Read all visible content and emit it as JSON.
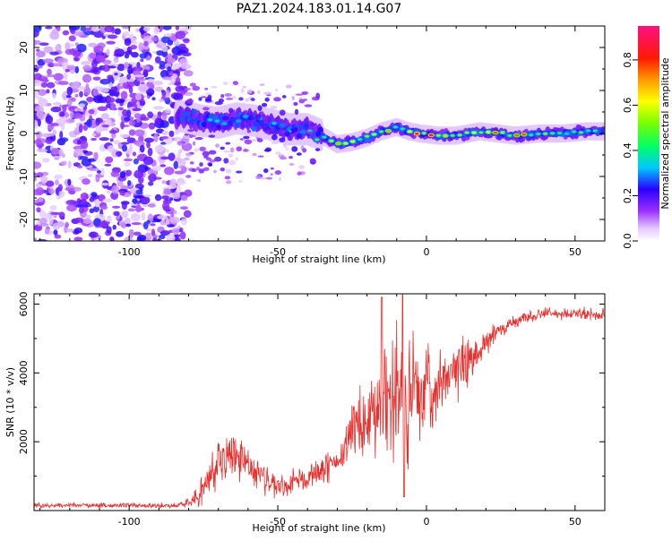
{
  "title": "PAZ1.2024.183.01.14.G07",
  "chart_data": [
    {
      "type": "heatmap",
      "xlabel": "Height of straight line (km)",
      "ylabel": "Frequency (Hz)",
      "xlim": [
        -132,
        60
      ],
      "ylim": [
        -25,
        25
      ],
      "xticks": [
        -100,
        -50,
        0,
        50
      ],
      "yticks": [
        -20,
        -10,
        0,
        10,
        20
      ],
      "colorbar": {
        "label": "Normalized spectral amplitude",
        "range": [
          0,
          0.95
        ],
        "ticks": [
          0.0,
          0.2,
          0.4,
          0.6,
          0.8
        ]
      },
      "ridge": [
        {
          "x": -82,
          "y": 4.0,
          "a": 0.25
        },
        {
          "x": -76,
          "y": 3.0,
          "a": 0.3
        },
        {
          "x": -70,
          "y": 2.5,
          "a": 0.35
        },
        {
          "x": -64,
          "y": 3.5,
          "a": 0.35
        },
        {
          "x": -58,
          "y": 3.0,
          "a": 0.4
        },
        {
          "x": -52,
          "y": 2.0,
          "a": 0.35
        },
        {
          "x": -46,
          "y": 1.0,
          "a": 0.4
        },
        {
          "x": -40,
          "y": 1.0,
          "a": 0.45
        },
        {
          "x": -35,
          "y": -0.5,
          "a": 0.55
        },
        {
          "x": -30,
          "y": -2.5,
          "a": 0.8
        },
        {
          "x": -25,
          "y": -2.0,
          "a": 0.75
        },
        {
          "x": -20,
          "y": -1.0,
          "a": 0.6
        },
        {
          "x": -15,
          "y": 0.5,
          "a": 0.7
        },
        {
          "x": -10,
          "y": 1.5,
          "a": 0.65
        },
        {
          "x": -6,
          "y": 0.5,
          "a": 0.8
        },
        {
          "x": -2,
          "y": 0.0,
          "a": 0.85
        },
        {
          "x": 4,
          "y": -0.5,
          "a": 0.85
        },
        {
          "x": 10,
          "y": -0.5,
          "a": 0.9
        },
        {
          "x": 18,
          "y": 0.5,
          "a": 0.8
        },
        {
          "x": 24,
          "y": 0.0,
          "a": 0.7
        },
        {
          "x": 30,
          "y": -0.5,
          "a": 0.85
        },
        {
          "x": 38,
          "y": 0.0,
          "a": 0.55
        },
        {
          "x": 46,
          "y": 0.0,
          "a": 0.5
        },
        {
          "x": 54,
          "y": 0.5,
          "a": 0.45
        },
        {
          "x": 60,
          "y": 0.5,
          "a": 0.45
        }
      ]
    },
    {
      "type": "line",
      "xlabel": "Height of straight line (km)",
      "ylabel": "SNR (10 * v/v)",
      "xlim": [
        -132,
        60
      ],
      "ylim": [
        0,
        6300
      ],
      "xticks": [
        -100,
        -50,
        0,
        50
      ],
      "yticks": [
        2000,
        4000,
        6000
      ],
      "color": "#e8302e",
      "x": [
        -132,
        -120,
        -100,
        -85,
        -80,
        -75,
        -72,
        -70,
        -68,
        -66,
        -64,
        -62,
        -60,
        -58,
        -55,
        -50,
        -45,
        -40,
        -35,
        -30,
        -25,
        -22,
        -20,
        -17,
        -15,
        -12,
        -10,
        -8,
        -5,
        -2,
        0,
        3,
        5,
        8,
        10,
        13,
        15,
        18,
        20,
        25,
        30,
        35,
        40,
        45,
        50,
        55,
        60
      ],
      "y": [
        150,
        150,
        150,
        150,
        250,
        600,
        1000,
        1500,
        1600,
        1650,
        1550,
        1450,
        1350,
        1100,
        900,
        700,
        800,
        950,
        1200,
        1300,
        2200,
        2400,
        2700,
        2900,
        2800,
        3300,
        3400,
        3300,
        3200,
        3400,
        3450,
        3600,
        3700,
        3900,
        4000,
        4250,
        4400,
        4700,
        4950,
        5300,
        5500,
        5650,
        5750,
        5700,
        5750,
        5700,
        5700
      ],
      "amp": [
        80,
        80,
        80,
        80,
        150,
        500,
        900,
        900,
        850,
        800,
        750,
        650,
        550,
        450,
        400,
        350,
        400,
        450,
        450,
        500,
        900,
        1000,
        1400,
        1500,
        2000,
        2000,
        2200,
        2400,
        1800,
        1500,
        1400,
        1300,
        1100,
        1000,
        1000,
        800,
        700,
        500,
        400,
        300,
        250,
        200,
        180,
        180,
        180,
        180,
        180
      ]
    }
  ]
}
